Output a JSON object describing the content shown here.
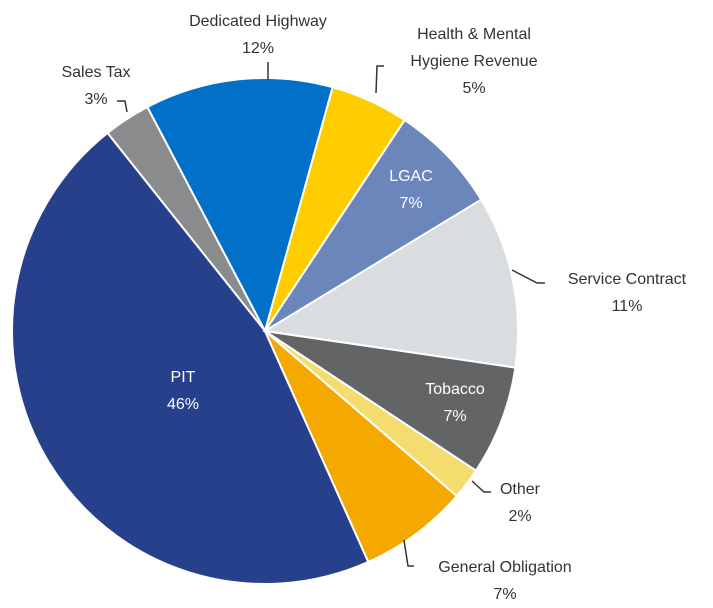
{
  "chart_data": {
    "type": "pie",
    "categories": [
      "Dedicated Highway",
      "Health & Mental Hygiene Revenue",
      "LGAC",
      "Service Contract",
      "Tobacco",
      "Other",
      "General Obligation",
      "PIT",
      "Sales Tax"
    ],
    "values": [
      12,
      5,
      7,
      11,
      7,
      2,
      7,
      46,
      3
    ],
    "value_labels": [
      "12%",
      "5%",
      "7%",
      "11%",
      "7%",
      "2%",
      "7%",
      "46%",
      "3%"
    ],
    "colors": [
      "#0070c8",
      "#ffcc00",
      "#6a86bb",
      "#d9dde0",
      "#636466",
      "#f5dc6e",
      "#f5a800",
      "#27408b",
      "#8a8b8d"
    ]
  }
}
